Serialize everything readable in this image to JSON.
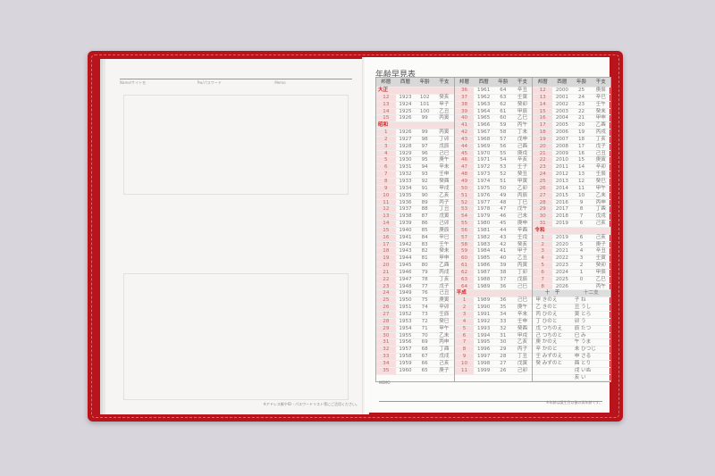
{
  "left_page": {
    "fields": [
      "Name/サイト名",
      "Pw/パスワード",
      "Memo"
    ],
    "footer": "※アドレス帳やID・パスワードリスト等にご活用ください。"
  },
  "right_page": {
    "title": "年齢早見表",
    "headers": [
      "邦暦",
      "西暦",
      "年齢",
      "干支"
    ],
    "memo_label": "MEMO",
    "footer": "※年齢は誕生日以後の満年齢です。",
    "eras": {
      "taisho": "大正",
      "showa": "昭和",
      "heisei": "平成",
      "reiwa": "令和"
    },
    "columns": [
      [
        {
          "era": "大正"
        },
        [
          "12",
          "1923",
          "102",
          "癸亥"
        ],
        [
          "13",
          "1924",
          "101",
          "甲子"
        ],
        [
          "14",
          "1925",
          "100",
          "乙丑"
        ],
        [
          "15",
          "1926",
          "99",
          "丙寅"
        ],
        {
          "era": "昭和"
        },
        [
          "1",
          "1926",
          "99",
          "丙寅"
        ],
        [
          "2",
          "1927",
          "98",
          "丁卯"
        ],
        [
          "3",
          "1928",
          "97",
          "戊辰"
        ],
        [
          "4",
          "1929",
          "96",
          "己巳"
        ],
        [
          "5",
          "1930",
          "95",
          "庚午"
        ],
        [
          "6",
          "1931",
          "94",
          "辛未"
        ],
        [
          "7",
          "1932",
          "93",
          "壬申"
        ],
        [
          "8",
          "1933",
          "92",
          "癸酉"
        ],
        [
          "9",
          "1934",
          "91",
          "甲戌"
        ],
        [
          "10",
          "1935",
          "90",
          "乙亥"
        ],
        [
          "11",
          "1936",
          "89",
          "丙子"
        ],
        [
          "12",
          "1937",
          "88",
          "丁丑"
        ],
        [
          "13",
          "1938",
          "87",
          "戊寅"
        ],
        [
          "14",
          "1939",
          "86",
          "己卯"
        ],
        [
          "15",
          "1940",
          "85",
          "庚辰"
        ],
        [
          "16",
          "1941",
          "84",
          "辛巳"
        ],
        [
          "17",
          "1942",
          "83",
          "壬午"
        ],
        [
          "18",
          "1943",
          "82",
          "癸未"
        ],
        [
          "19",
          "1944",
          "81",
          "甲申"
        ],
        [
          "20",
          "1945",
          "80",
          "乙酉"
        ],
        [
          "21",
          "1946",
          "79",
          "丙戌"
        ],
        [
          "22",
          "1947",
          "78",
          "丁亥"
        ],
        [
          "23",
          "1948",
          "77",
          "戊子"
        ],
        [
          "24",
          "1949",
          "76",
          "己丑"
        ],
        [
          "25",
          "1950",
          "75",
          "庚寅"
        ],
        [
          "26",
          "1951",
          "74",
          "辛卯"
        ],
        [
          "27",
          "1952",
          "73",
          "壬辰"
        ],
        [
          "28",
          "1953",
          "72",
          "癸巳"
        ],
        [
          "29",
          "1954",
          "71",
          "甲午"
        ],
        [
          "30",
          "1955",
          "70",
          "乙未"
        ],
        [
          "31",
          "1956",
          "69",
          "丙申"
        ],
        [
          "32",
          "1957",
          "68",
          "丁酉"
        ],
        [
          "33",
          "1958",
          "67",
          "戊戌"
        ],
        [
          "34",
          "1959",
          "66",
          "己亥"
        ],
        [
          "35",
          "1960",
          "65",
          "庚子"
        ]
      ],
      [
        [
          "36",
          "1961",
          "64",
          "辛丑"
        ],
        [
          "37",
          "1962",
          "63",
          "壬寅"
        ],
        [
          "38",
          "1963",
          "62",
          "癸卯"
        ],
        [
          "39",
          "1964",
          "61",
          "甲辰"
        ],
        [
          "40",
          "1965",
          "60",
          "乙巳"
        ],
        [
          "41",
          "1966",
          "59",
          "丙午"
        ],
        [
          "42",
          "1967",
          "58",
          "丁未"
        ],
        [
          "43",
          "1968",
          "57",
          "戊申"
        ],
        [
          "44",
          "1969",
          "56",
          "己酉"
        ],
        [
          "45",
          "1970",
          "55",
          "庚戌"
        ],
        [
          "46",
          "1971",
          "54",
          "辛亥"
        ],
        [
          "47",
          "1972",
          "53",
          "壬子"
        ],
        [
          "48",
          "1973",
          "52",
          "癸丑"
        ],
        [
          "49",
          "1974",
          "51",
          "甲寅"
        ],
        [
          "50",
          "1975",
          "50",
          "乙卯"
        ],
        [
          "51",
          "1976",
          "49",
          "丙辰"
        ],
        [
          "52",
          "1977",
          "48",
          "丁巳"
        ],
        [
          "53",
          "1978",
          "47",
          "戊午"
        ],
        [
          "54",
          "1979",
          "46",
          "己未"
        ],
        [
          "55",
          "1980",
          "45",
          "庚申"
        ],
        [
          "56",
          "1981",
          "44",
          "辛酉"
        ],
        [
          "57",
          "1982",
          "43",
          "壬戌"
        ],
        [
          "58",
          "1983",
          "42",
          "癸亥"
        ],
        [
          "59",
          "1984",
          "41",
          "甲子"
        ],
        [
          "60",
          "1985",
          "40",
          "乙丑"
        ],
        [
          "61",
          "1986",
          "39",
          "丙寅"
        ],
        [
          "62",
          "1987",
          "38",
          "丁卯"
        ],
        [
          "63",
          "1988",
          "37",
          "戊辰"
        ],
        [
          "64",
          "1989",
          "36",
          "己巳"
        ],
        {
          "era": "平成"
        },
        [
          "1",
          "1989",
          "36",
          "己巳"
        ],
        [
          "2",
          "1990",
          "35",
          "庚午"
        ],
        [
          "3",
          "1991",
          "34",
          "辛未"
        ],
        [
          "4",
          "1992",
          "33",
          "壬申"
        ],
        [
          "5",
          "1993",
          "32",
          "癸酉"
        ],
        [
          "6",
          "1994",
          "31",
          "甲戌"
        ],
        [
          "7",
          "1995",
          "30",
          "乙亥"
        ],
        [
          "8",
          "1996",
          "29",
          "丙子"
        ],
        [
          "9",
          "1997",
          "28",
          "丁丑"
        ],
        [
          "10",
          "1998",
          "27",
          "戊寅"
        ],
        [
          "11",
          "1999",
          "26",
          "己卯"
        ]
      ],
      [
        [
          "12",
          "2000",
          "25",
          "庚辰"
        ],
        [
          "13",
          "2001",
          "24",
          "辛巳"
        ],
        [
          "14",
          "2002",
          "23",
          "壬午"
        ],
        [
          "15",
          "2003",
          "22",
          "癸未"
        ],
        [
          "16",
          "2004",
          "21",
          "甲申"
        ],
        [
          "17",
          "2005",
          "20",
          "乙酉"
        ],
        [
          "18",
          "2006",
          "19",
          "丙戌"
        ],
        [
          "19",
          "2007",
          "18",
          "丁亥"
        ],
        [
          "20",
          "2008",
          "17",
          "戊子"
        ],
        [
          "21",
          "2009",
          "16",
          "己丑"
        ],
        [
          "22",
          "2010",
          "15",
          "庚寅"
        ],
        [
          "23",
          "2011",
          "14",
          "辛卯"
        ],
        [
          "24",
          "2012",
          "13",
          "壬辰"
        ],
        [
          "25",
          "2013",
          "12",
          "癸巳"
        ],
        [
          "26",
          "2014",
          "11",
          "甲午"
        ],
        [
          "27",
          "2015",
          "10",
          "乙未"
        ],
        [
          "28",
          "2016",
          "9",
          "丙申"
        ],
        [
          "29",
          "2017",
          "8",
          "丁酉"
        ],
        [
          "30",
          "2018",
          "7",
          "戊戌"
        ],
        [
          "31",
          "2019",
          "6",
          "己亥"
        ],
        {
          "era": "令和"
        },
        [
          "1",
          "2019",
          "6",
          "己亥"
        ],
        [
          "2",
          "2020",
          "5",
          "庚子"
        ],
        [
          "3",
          "2021",
          "4",
          "辛丑"
        ],
        [
          "4",
          "2022",
          "3",
          "壬寅"
        ],
        [
          "5",
          "2023",
          "2",
          "癸卯"
        ],
        [
          "6",
          "2024",
          "1",
          "甲辰"
        ],
        [
          "7",
          "2025",
          "0",
          "乙巳"
        ],
        [
          "8",
          "2026",
          "",
          "丙午"
        ]
      ]
    ],
    "zodiac": {
      "stems_header": "十　干",
      "branches_header": "十二支",
      "stems": [
        "甲 きのえ",
        "乙 きのと",
        "丙 ひのえ",
        "丁 ひのと",
        "戊 つちのえ",
        "己 つちのと",
        "庚 かのえ",
        "辛 かのと",
        "壬 みずのえ",
        "癸 みずのと"
      ],
      "branches": [
        "子 ね",
        "丑 うし",
        "寅 とら",
        "卯 う",
        "辰 たつ",
        "巳 み",
        "午 うま",
        "未 ひつじ",
        "申 さる",
        "酉 とり",
        "戌 いぬ",
        "亥 い"
      ]
    }
  },
  "colors": {
    "cover": "#b8141c",
    "era_label": "#dd2222",
    "era_column": "#f6dede"
  }
}
